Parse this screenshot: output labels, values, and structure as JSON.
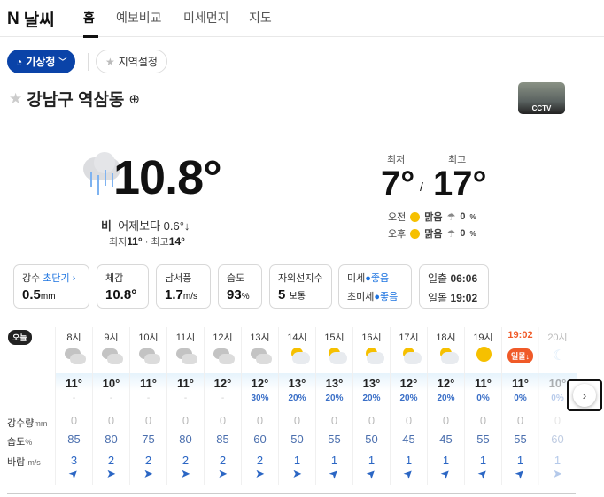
{
  "nav": {
    "logo_n": "N",
    "logo_text": "날씨",
    "tabs": [
      "홈",
      "예보비교",
      "미세먼지",
      "지도"
    ]
  },
  "source": {
    "label": "기상청",
    "region_button": "지역설정"
  },
  "location": {
    "name": "강남구 역삼동",
    "cctv": "CCTV"
  },
  "current": {
    "temp": "10.8°",
    "condition": "비",
    "compare": "어제보다 0.6°↓",
    "min_label": "최지",
    "min": "11°",
    "max_label": "최고",
    "max": "14°",
    "icon": "rain-cloud-icon"
  },
  "daily": {
    "min_label": "최저",
    "max_label": "최고",
    "min": "7°",
    "max": "17°",
    "am": {
      "label": "오전",
      "cond": "맑음",
      "rain": "0",
      "unit": "%"
    },
    "pm": {
      "label": "오후",
      "cond": "맑음",
      "rain": "0",
      "unit": "%"
    }
  },
  "cards": [
    {
      "label": "강수",
      "link": "초단기 ›",
      "value": "0.5",
      "unit": "mm"
    },
    {
      "label": "체감",
      "value": "10.8°",
      "unit": ""
    },
    {
      "label": "남서풍",
      "value": "1.7",
      "unit": "m/s"
    },
    {
      "label": "습도",
      "value": "93",
      "unit": "%"
    },
    {
      "label": "자외선지수",
      "value": "5",
      "unit": "보통"
    }
  ],
  "dust": {
    "pm10_label": "미세",
    "pm10": "좋음",
    "pm25_label": "초미세",
    "pm25": "좋음"
  },
  "sun": {
    "rise_label": "일출",
    "rise": "06:06",
    "set_label": "일몰",
    "set": "19:02"
  },
  "hourly": {
    "today": "오늘",
    "labels": {
      "rain": "강수량",
      "rain_unit": "mm",
      "hum": "습도",
      "hum_unit": "%",
      "wind": "바람",
      "wind_unit": "m/s"
    },
    "items": [
      {
        "h": "8시",
        "icon": "cloudy",
        "t": "11°",
        "p": "-",
        "r": "0",
        "hu": "85",
        "w": "3",
        "dir": "ne"
      },
      {
        "h": "9시",
        "icon": "cloudy",
        "t": "10°",
        "p": "-",
        "r": "0",
        "hu": "80",
        "w": "2",
        "dir": "e"
      },
      {
        "h": "10시",
        "icon": "cloudy",
        "t": "11°",
        "p": "-",
        "r": "0",
        "hu": "75",
        "w": "2",
        "dir": "e"
      },
      {
        "h": "11시",
        "icon": "cloudy",
        "t": "11°",
        "p": "-",
        "r": "0",
        "hu": "80",
        "w": "2",
        "dir": "e"
      },
      {
        "h": "12시",
        "icon": "cloudy",
        "t": "12°",
        "p": "-",
        "r": "0",
        "hu": "85",
        "w": "2",
        "dir": "e"
      },
      {
        "h": "13시",
        "icon": "cloudy",
        "t": "12°",
        "p": "30%",
        "r": "0",
        "hu": "60",
        "w": "2",
        "dir": "e"
      },
      {
        "h": "14시",
        "icon": "partly-sunny",
        "t": "13°",
        "p": "20%",
        "r": "0",
        "hu": "50",
        "w": "1",
        "dir": "e"
      },
      {
        "h": "15시",
        "icon": "partly-sunny",
        "t": "13°",
        "p": "20%",
        "r": "0",
        "hu": "55",
        "w": "1",
        "dir": "ne"
      },
      {
        "h": "16시",
        "icon": "partly-sunny",
        "t": "13°",
        "p": "20%",
        "r": "0",
        "hu": "50",
        "w": "1",
        "dir": "ne"
      },
      {
        "h": "17시",
        "icon": "partly-sunny",
        "t": "12°",
        "p": "20%",
        "r": "0",
        "hu": "45",
        "w": "1",
        "dir": "ne"
      },
      {
        "h": "18시",
        "icon": "partly-sunny",
        "t": "12°",
        "p": "20%",
        "r": "0",
        "hu": "45",
        "w": "1",
        "dir": "ne"
      },
      {
        "h": "19시",
        "icon": "sunny",
        "t": "11°",
        "p": "0%",
        "r": "0",
        "hu": "55",
        "w": "1",
        "dir": "ne"
      },
      {
        "h": "19:02",
        "icon": "sunset",
        "badge": "일몰↓",
        "t": "11°",
        "p": "0%",
        "r": "0",
        "hu": "55",
        "w": "1",
        "dir": "ne"
      },
      {
        "h": "20시",
        "icon": "moon",
        "t": "10°",
        "p": "0%",
        "r": "0",
        "hu": "60",
        "w": "1",
        "dir": "e"
      }
    ]
  },
  "colors": {
    "accent": "#0a43a8",
    "sunset": "#f05a28",
    "link": "#1d74e0"
  }
}
